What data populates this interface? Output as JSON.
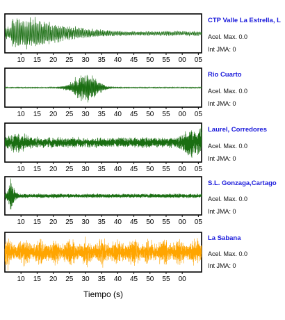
{
  "chart_data": {
    "type": "line",
    "xlabel": "Tiempo (s)",
    "panels": [
      {
        "station": "CTP Valle La Estrella, L",
        "color": "#1a6e12",
        "accel_label": "Acel. Max. 0.0",
        "jma_label": "Int JMA: 0",
        "tick_labels": [
          "10",
          "15",
          "20",
          "25",
          "30",
          "35",
          "40",
          "45",
          "50",
          "55",
          "00",
          "05"
        ],
        "waveform": "decaying oscillation, large amplitude at 5-15 s, decaying to ~0.15 of full scale by 65 s"
      },
      {
        "station": "Rio Cuarto",
        "color": "#1a6e12",
        "accel_label": "Acel. Max. 0.0",
        "jma_label": "Int JMA: 0",
        "tick_labels": [
          "10",
          "15",
          "20",
          "25",
          "30",
          "35",
          "40",
          "45",
          "50",
          "55",
          "00",
          "05"
        ],
        "waveform": "quiet baseline with burst centered near 30 s (approx. 22-38 s)"
      },
      {
        "station": "Laurel, Corredores",
        "color": "#1a6e12",
        "accel_label": "Acel. Max. 0.0",
        "jma_label": "Int JMA: 0",
        "tick_labels": [
          "10",
          "15",
          "20",
          "25",
          "30",
          "35",
          "40",
          "45",
          "50",
          "55",
          "00",
          "05"
        ],
        "waveform": "noisy throughout, strong at 7-12 s and rising sharply near 60-65 s"
      },
      {
        "station": "S.L. Gonzaga,Cartago",
        "color": "#1a6e12",
        "accel_label": "Acel. Max. 0.0",
        "jma_label": "Int JMA: 0",
        "tick_labels": [
          "10",
          "15",
          "20",
          "25",
          "30",
          "35",
          "40",
          "45",
          "50",
          "55",
          "00",
          "05"
        ],
        "waveform": "large spike near 7 s, low-amplitude noise afterwards"
      },
      {
        "station": "La Sabana",
        "color": "#ffa500",
        "accel_label": "Acel. Max. 0.0",
        "jma_label": "Int JMA: 0",
        "tick_labels": [
          "10",
          "15",
          "20",
          "25",
          "30",
          "35",
          "40",
          "45",
          "50",
          "55",
          "00"
        ],
        "waveform": "dense high-amplitude noise across the full window"
      }
    ],
    "name_color": "#1a1adb"
  }
}
